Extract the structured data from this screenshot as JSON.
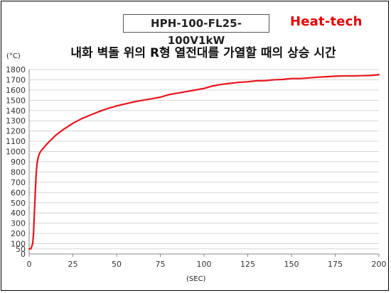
{
  "header": {
    "model_label": "HPH-100-FL25-100V1kW",
    "brand": "Heat-tech",
    "brand_color": "#e40000"
  },
  "chart_data": {
    "type": "line",
    "title": "내화 벽돌 위의 R형 열전대를 가열할 때의 상승 시간",
    "xlabel": "(SEC)",
    "ylabel": "(°C)",
    "xlim": [
      0,
      200
    ],
    "ylim": [
      0,
      1800
    ],
    "xticks": [
      0,
      25,
      50,
      75,
      100,
      125,
      150,
      175,
      200
    ],
    "yticks": [
      0,
      50,
      100,
      200,
      300,
      400,
      500,
      600,
      700,
      800,
      900,
      1000,
      1100,
      1200,
      1300,
      1400,
      1500,
      1600,
      1700,
      1800
    ],
    "grid": "horizontal",
    "legend": "none",
    "series": [
      {
        "color": "#e8141c",
        "x": [
          0,
          1,
          2,
          2.5,
          3,
          3.5,
          4,
          4.5,
          5,
          5.5,
          6,
          7,
          8,
          10,
          12,
          15,
          18,
          20,
          25,
          30,
          35,
          40,
          45,
          50,
          55,
          60,
          65,
          70,
          75,
          78,
          80,
          85,
          90,
          95,
          100,
          105,
          110,
          115,
          120,
          125,
          130,
          135,
          140,
          145,
          150,
          155,
          160,
          165,
          170,
          175,
          180,
          185,
          190,
          195,
          200
        ],
        "y": [
          50,
          50,
          100,
          200,
          400,
          600,
          780,
          880,
          930,
          960,
          985,
          1010,
          1030,
          1070,
          1105,
          1155,
          1195,
          1220,
          1275,
          1320,
          1355,
          1390,
          1420,
          1445,
          1465,
          1485,
          1500,
          1515,
          1530,
          1545,
          1555,
          1570,
          1585,
          1600,
          1615,
          1640,
          1655,
          1665,
          1675,
          1680,
          1690,
          1692,
          1700,
          1703,
          1712,
          1712,
          1718,
          1725,
          1730,
          1735,
          1738,
          1738,
          1740,
          1742,
          1750
        ]
      }
    ]
  }
}
